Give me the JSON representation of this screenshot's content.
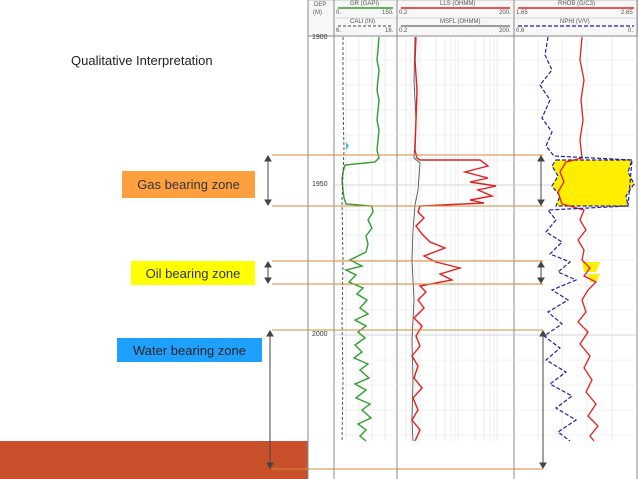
{
  "title": "Qualitative Interpretation",
  "zones": {
    "gas": {
      "label": "Gas bearing zone",
      "color": "#ffa040"
    },
    "oil": {
      "label": "Oil bearing zone",
      "color": "#ffff00"
    },
    "water": {
      "label": "Water bearing zone",
      "color": "#1e90ff"
    }
  },
  "log_header": {
    "depth_label": "DEP",
    "depth_unit": "(M)",
    "track1": {
      "curve1": "GR (GAPI)",
      "curve1_min": "0.",
      "curve1_max": "150.",
      "curve2": "CALI (IN)",
      "curve2_min": "6.",
      "curve2_max": "16."
    },
    "track2": {
      "curve1": "LLS (OHMM)",
      "curve1_min": "0.2",
      "curve1_max": "200.",
      "curve2": "MSFL (OHMM)",
      "curve2_min": "0.2",
      "curve2_max": "200."
    },
    "track3": {
      "curve1": "RHOB (G/C3)",
      "curve1_min": "1.65",
      "curve1_max": "2.65",
      "curve2": "NPHI (V/V)",
      "curve2_min": "0.6",
      "curve2_max": "0."
    }
  },
  "depths": {
    "d1900": "1900",
    "d1950": "1950",
    "d2000": "2000"
  },
  "colors": {
    "gr": "#2e9e2e",
    "resistivity": "#e02020",
    "density": "#e02020",
    "neutron": "#2020a0",
    "gas_fill": "#ffee00",
    "bottom_bar": "#c8502a",
    "zone_line": "#d4883a"
  }
}
